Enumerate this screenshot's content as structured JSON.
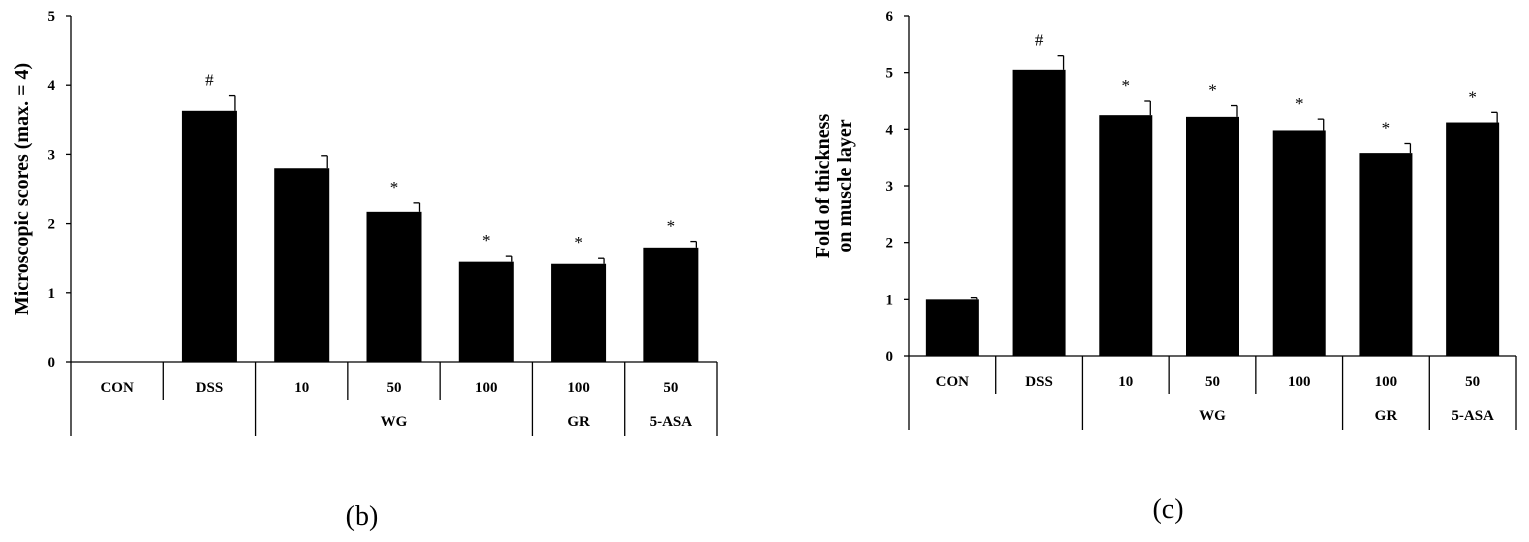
{
  "chart_data": [
    {
      "type": "bar",
      "panel_label": "(b)",
      "ylabel": "Microscopic scores (max. = 4)",
      "ylim": [
        0,
        5
      ],
      "yticks": [
        0,
        1,
        2,
        3,
        4,
        5
      ],
      "categories": [
        "CON",
        "DSS",
        "10",
        "50",
        "100",
        "100",
        "50"
      ],
      "values": [
        0,
        3.63,
        2.8,
        2.17,
        1.45,
        1.42,
        1.65
      ],
      "errors": [
        0,
        0.22,
        0.18,
        0.13,
        0.08,
        0.08,
        0.09
      ],
      "markers": [
        "",
        "#",
        "",
        "*",
        "*",
        "*",
        "*"
      ],
      "groups": [
        {
          "label": "",
          "start": 0,
          "end": 1
        },
        {
          "label": "WG",
          "start": 2,
          "end": 4
        },
        {
          "label": "GR",
          "start": 5,
          "end": 5
        },
        {
          "label": "5-ASA",
          "start": 6,
          "end": 6
        }
      ],
      "color": "#000000"
    },
    {
      "type": "bar",
      "panel_label": "(c)",
      "ylabel": [
        "Fold of thickness",
        "on muscle layer"
      ],
      "ylim": [
        0,
        6
      ],
      "yticks": [
        0,
        1,
        2,
        3,
        4,
        5,
        6
      ],
      "categories": [
        "CON",
        "DSS",
        "10",
        "50",
        "100",
        "100",
        "50"
      ],
      "values": [
        1.0,
        5.05,
        4.25,
        4.22,
        3.98,
        3.58,
        4.12
      ],
      "errors": [
        0.03,
        0.25,
        0.25,
        0.2,
        0.2,
        0.17,
        0.18
      ],
      "markers": [
        "",
        "#",
        "*",
        "*",
        "*",
        "*",
        "*"
      ],
      "groups": [
        {
          "label": "",
          "start": 0,
          "end": 1
        },
        {
          "label": "WG",
          "start": 2,
          "end": 4
        },
        {
          "label": "GR",
          "start": 5,
          "end": 5
        },
        {
          "label": "5-ASA",
          "start": 6,
          "end": 6
        }
      ],
      "color": "#000000"
    }
  ]
}
